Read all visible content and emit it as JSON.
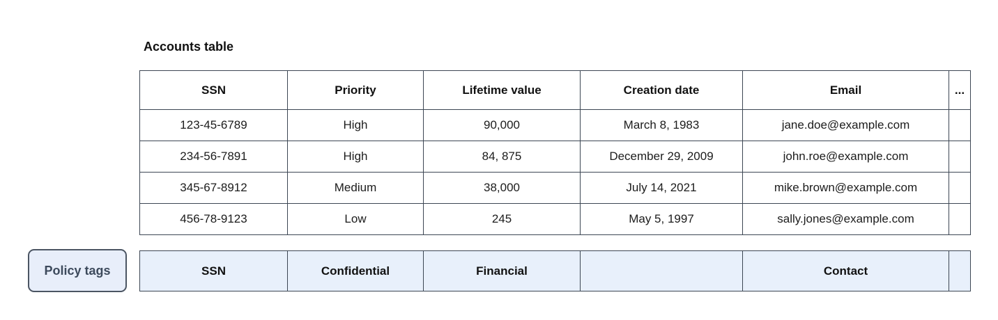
{
  "title": "Accounts table",
  "accounts_table": {
    "columns": [
      "SSN",
      "Priority",
      "Lifetime value",
      "Creation date",
      "Email",
      "..."
    ],
    "rows": [
      [
        "123-45-6789",
        "High",
        "90,000",
        "March 8, 1983",
        "jane.doe@example.com",
        ""
      ],
      [
        "234-56-7891",
        "High",
        "84, 875",
        "December 29, 2009",
        "john.roe@example.com",
        ""
      ],
      [
        "345-67-8912",
        "Medium",
        "38,000",
        "July 14, 2021",
        "mike.brown@example.com",
        ""
      ],
      [
        "456-78-9123",
        "Low",
        "245",
        "May 5, 1997",
        "sally.jones@example.com",
        ""
      ]
    ]
  },
  "policy": {
    "chip_label": "Policy tags",
    "tags": [
      "SSN",
      "Confidential",
      "Financial",
      "",
      "Contact",
      ""
    ]
  },
  "colors": {
    "table_border": "#3c4653",
    "policy_row_background": "#e8f0fb",
    "chip_background": "#e8eefa",
    "chip_border": "#4b5563",
    "chip_text": "#3d4a5c"
  }
}
